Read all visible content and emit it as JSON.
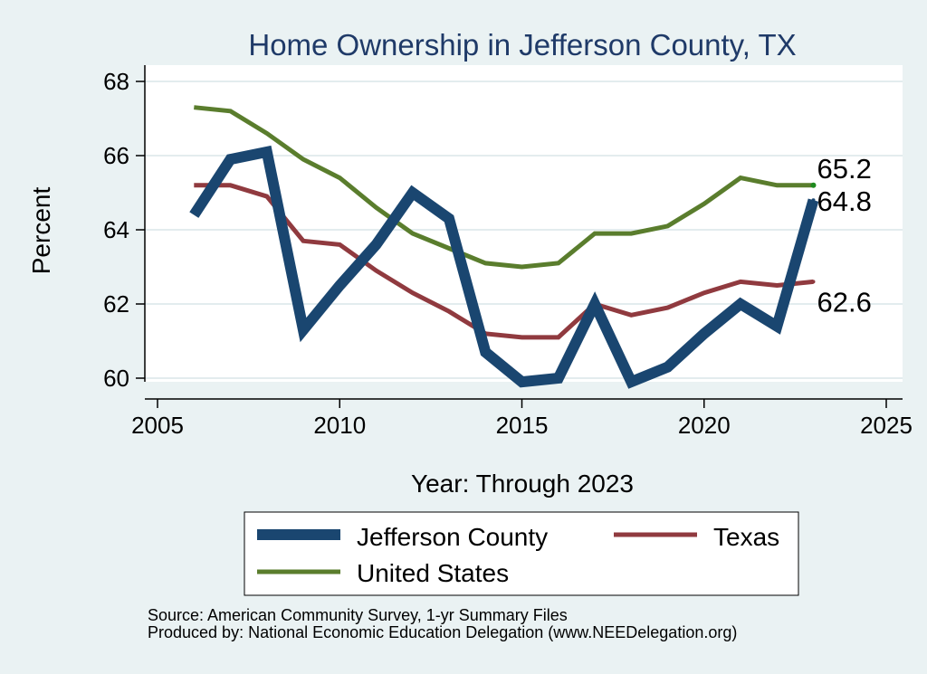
{
  "colors": {
    "background": "#eaf2f3",
    "plot_background": "#ffffff",
    "grid": "#e3ecee",
    "title": "#1f3a68",
    "jefferson": "#1a4670",
    "texas": "#903a3f",
    "us": "#5a7d2d"
  },
  "chart_data": {
    "type": "line",
    "title": "Home Ownership in Jefferson County, TX",
    "xlabel": "Year: Through 2023",
    "ylabel": "Percent",
    "xlim": [
      2005,
      2025
    ],
    "ylim": [
      59.7,
      68.4
    ],
    "x_ticks": [
      2005,
      2010,
      2015,
      2020,
      2025
    ],
    "y_ticks": [
      60,
      62,
      64,
      66,
      68
    ],
    "x": [
      2006,
      2007,
      2008,
      2009,
      2010,
      2011,
      2012,
      2013,
      2014,
      2015,
      2016,
      2017,
      2018,
      2019,
      2020,
      2021,
      2022,
      2023
    ],
    "series": [
      {
        "key": "jefferson",
        "name": "Jefferson County",
        "color": "#1a4670",
        "values": [
          64.4,
          65.9,
          66.1,
          61.3,
          62.5,
          63.6,
          65.0,
          64.3,
          60.7,
          59.9,
          60.0,
          62.0,
          59.9,
          60.3,
          61.2,
          62.0,
          61.4,
          64.8
        ],
        "end_label": "64.8"
      },
      {
        "key": "texas",
        "name": "Texas",
        "color": "#903a3f",
        "values": [
          65.2,
          65.2,
          64.9,
          63.7,
          63.6,
          62.9,
          62.3,
          61.8,
          61.2,
          61.1,
          61.1,
          62.0,
          61.7,
          61.9,
          62.3,
          62.6,
          62.5,
          62.6
        ],
        "end_label": "62.6"
      },
      {
        "key": "us",
        "name": "United States",
        "color": "#5a7d2d",
        "values": [
          67.3,
          67.2,
          66.6,
          65.9,
          65.4,
          64.6,
          63.9,
          63.5,
          63.1,
          63.0,
          63.1,
          63.9,
          63.9,
          64.1,
          64.7,
          65.4,
          65.2,
          65.2
        ],
        "end_label": "65.2"
      }
    ],
    "legend": [
      {
        "label": "Jefferson County",
        "series": "jefferson"
      },
      {
        "label": "Texas",
        "series": "texas"
      },
      {
        "label": "United States",
        "series": "us"
      }
    ],
    "grid": true
  },
  "footer": {
    "source": "Source: American Community Survey, 1-yr Summary Files",
    "produced_by": "Produced by: National Economic Education Delegation (www.NEEDelegation.org)"
  }
}
